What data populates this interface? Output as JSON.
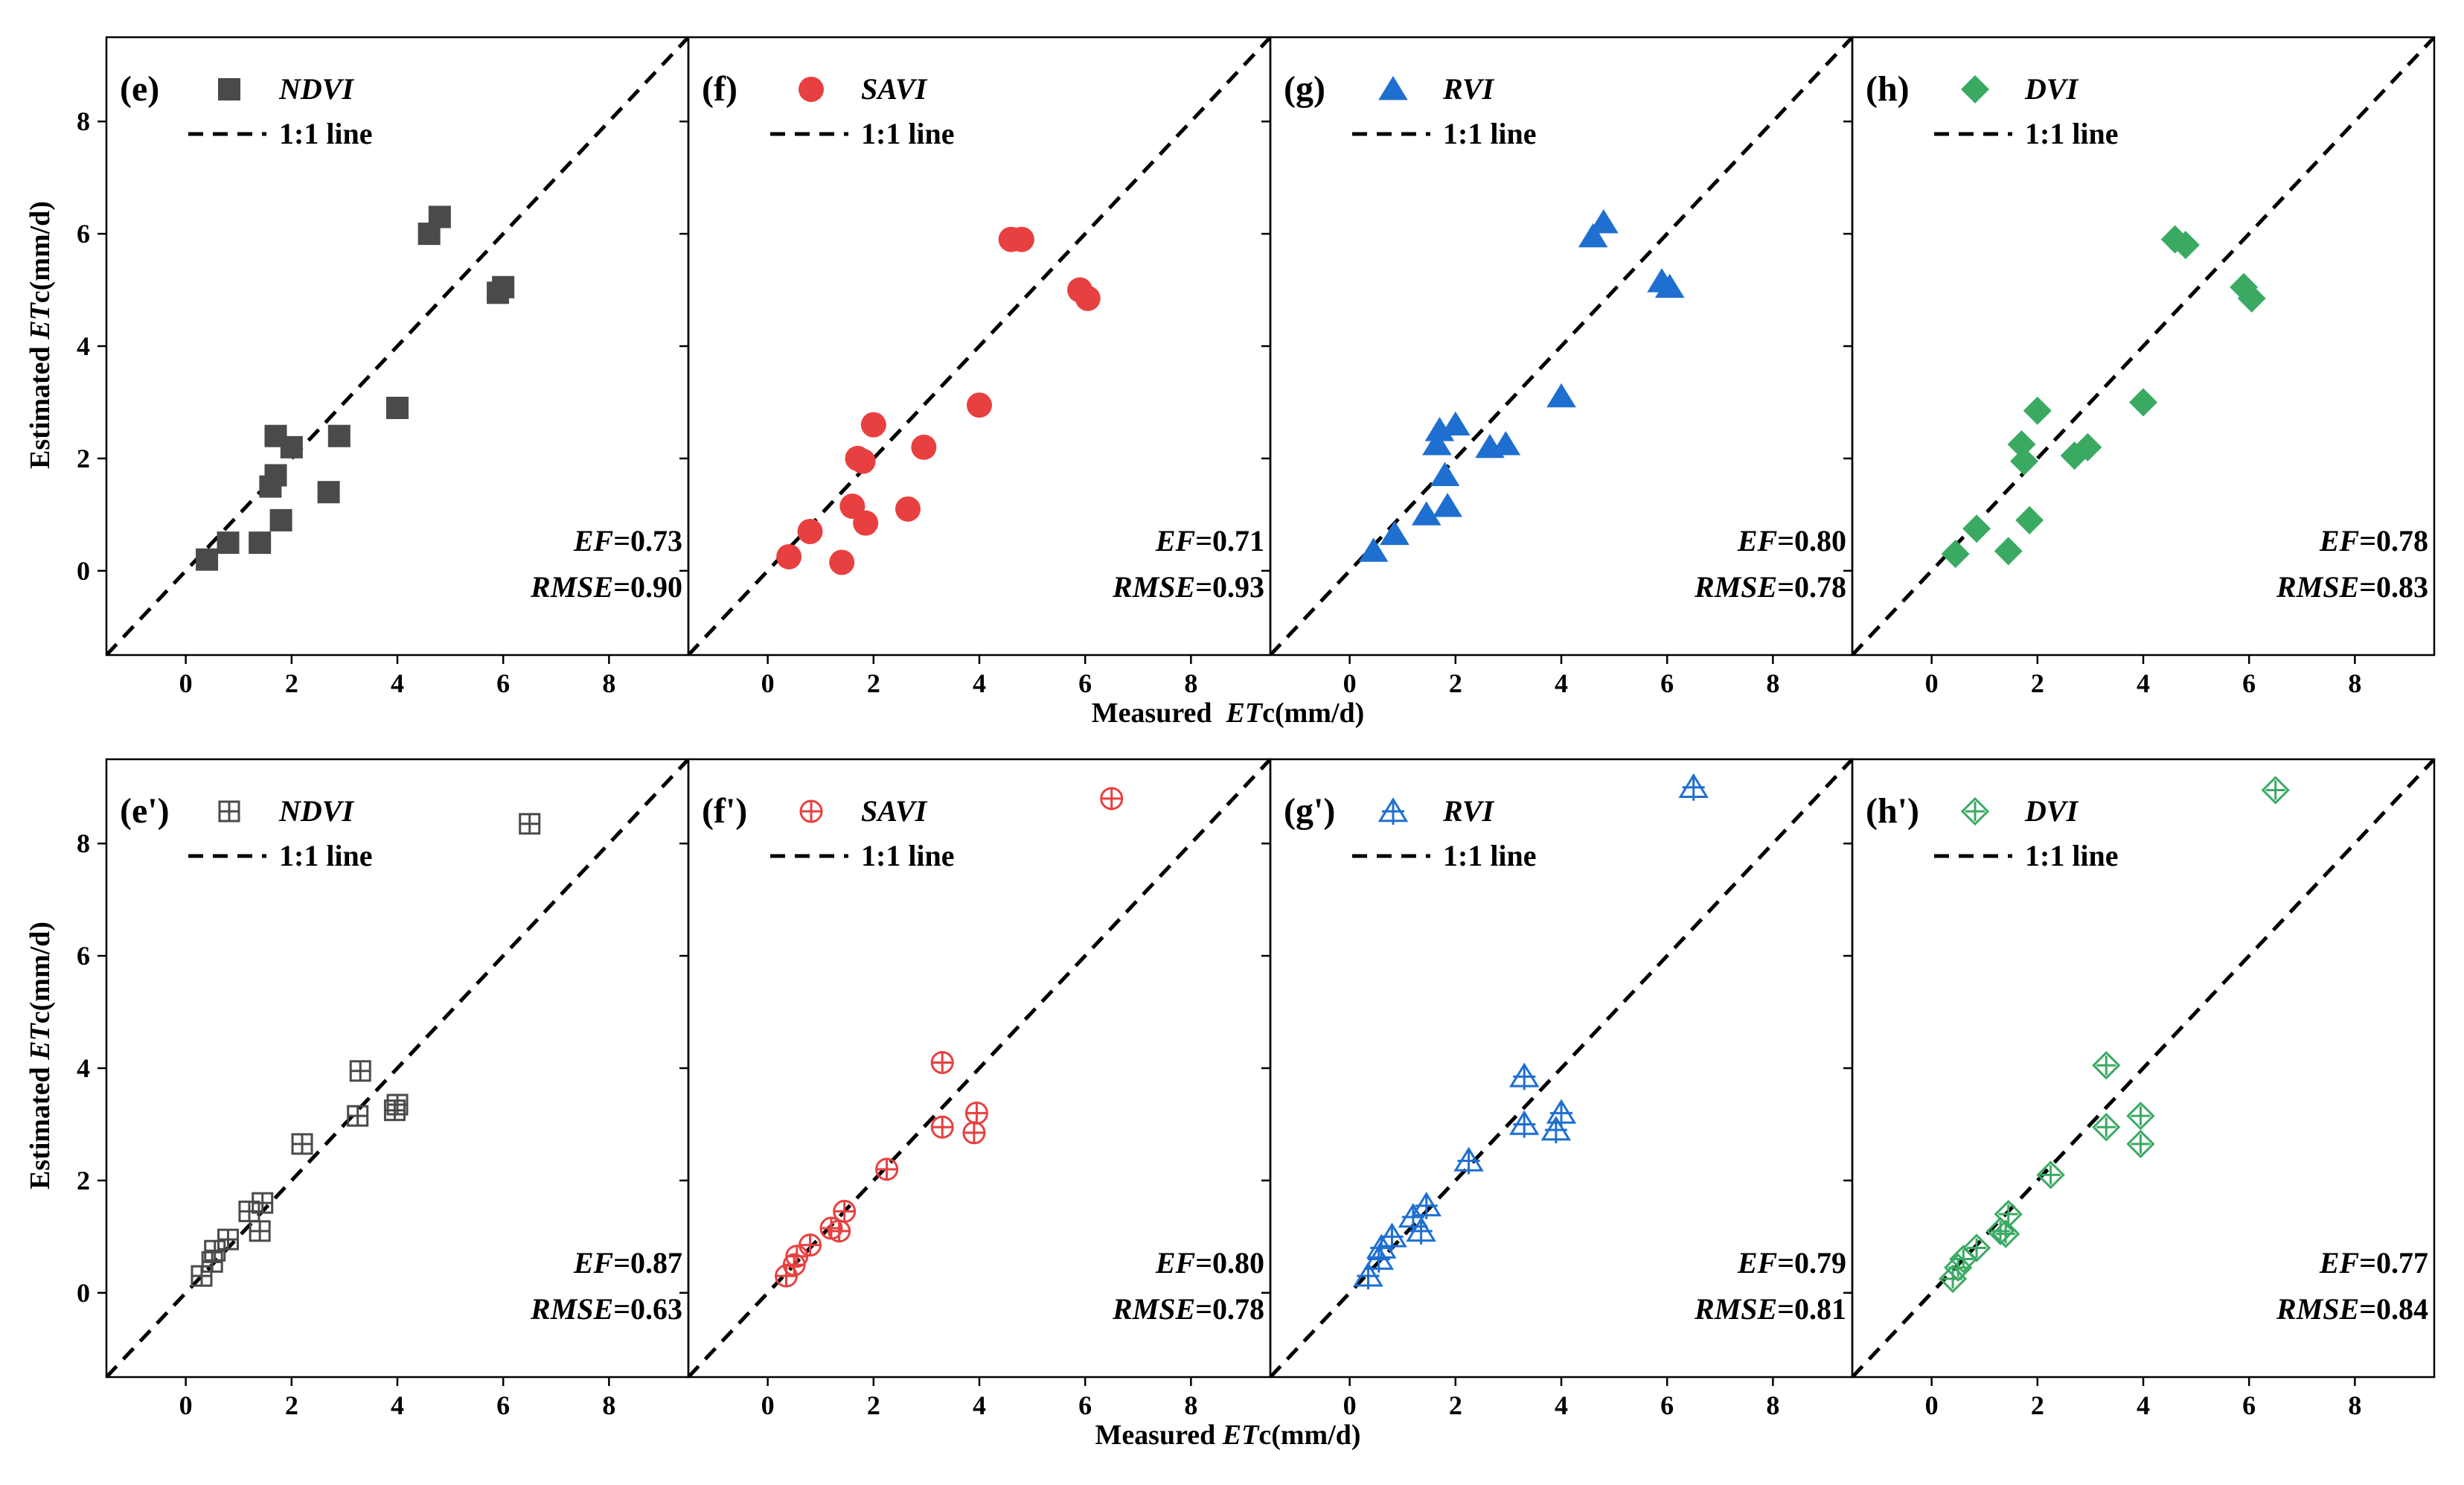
{
  "figure": {
    "rows": [
      {
        "xlabel_prefix": "Measured  ",
        "xlabel_italic": "ET",
        "xlabel_suffix": "c(mm/d)"
      },
      {
        "xlabel_prefix": "Measured ",
        "xlabel_italic": "ET",
        "xlabel_suffix": "c(mm/d)"
      }
    ],
    "ylabel_prefix": "Estimated ",
    "ylabel_italic": "ET",
    "ylabel_suffix": "c(mm/d)",
    "line_label": "1:1 line",
    "metric_labels": {
      "ef": "EF",
      "rmse": "RMSE"
    }
  },
  "chart_data": [
    {
      "type": "scatter",
      "panel_label": "(e)",
      "series_name": "NDVI",
      "marker": "square",
      "color": "#4a4a4a",
      "x": [
        0.4,
        0.8,
        1.4,
        1.6,
        1.7,
        1.7,
        1.8,
        2.0,
        2.7,
        2.9,
        4.0,
        4.6,
        4.8,
        5.9,
        6.0
      ],
      "y": [
        0.2,
        0.5,
        0.5,
        1.5,
        1.7,
        2.4,
        0.9,
        2.2,
        1.4,
        2.4,
        2.9,
        6.0,
        6.3,
        4.95,
        5.05
      ],
      "ef": "0.73",
      "rmse": "0.90",
      "xlim": [
        -1.5,
        9.5
      ],
      "ylim": [
        -1.5,
        9.5
      ],
      "xticks": [
        "0",
        "2",
        "4",
        "6",
        "8"
      ],
      "yticks": [
        "0",
        "2",
        "4",
        "6",
        "8"
      ]
    },
    {
      "type": "scatter",
      "panel_label": "(f)",
      "series_name": "SAVI",
      "marker": "circle",
      "color": "#e84040",
      "x": [
        0.4,
        0.8,
        1.4,
        1.6,
        1.7,
        1.8,
        1.85,
        2.0,
        2.65,
        2.95,
        4.0,
        4.6,
        4.8,
        5.9,
        6.05
      ],
      "y": [
        0.25,
        0.7,
        0.15,
        1.15,
        2.0,
        1.95,
        0.85,
        2.6,
        1.1,
        2.2,
        2.95,
        5.9,
        5.9,
        5.0,
        4.85
      ],
      "ef": "0.71",
      "rmse": "0.93",
      "xlim": [
        -1.5,
        9.5
      ],
      "ylim": [
        -1.5,
        9.5
      ],
      "xticks": [
        "0",
        "2",
        "4",
        "6",
        "8"
      ],
      "yticks": [
        "0",
        "2",
        "4",
        "6",
        "8"
      ]
    },
    {
      "type": "scatter",
      "panel_label": "(g)",
      "series_name": "RVI",
      "marker": "triangle",
      "color": "#1f6fd1",
      "x": [
        0.45,
        0.85,
        1.45,
        1.65,
        1.7,
        1.8,
        1.85,
        2.0,
        2.65,
        2.95,
        4.0,
        4.6,
        4.8,
        5.9,
        6.05
      ],
      "y": [
        0.35,
        0.65,
        1.0,
        2.25,
        2.5,
        1.7,
        1.15,
        2.6,
        2.2,
        2.25,
        3.1,
        5.95,
        6.2,
        5.15,
        5.05
      ],
      "ef": "0.80",
      "rmse": "0.78",
      "xlim": [
        -1.5,
        9.5
      ],
      "ylim": [
        -1.5,
        9.5
      ],
      "xticks": [
        "0",
        "2",
        "4",
        "6",
        "8"
      ],
      "yticks": [
        "0",
        "2",
        "4",
        "6",
        "8"
      ]
    },
    {
      "type": "scatter",
      "panel_label": "(h)",
      "series_name": "DVI",
      "marker": "diamond",
      "color": "#3aaa63",
      "x": [
        0.45,
        0.85,
        1.45,
        1.7,
        1.75,
        1.85,
        2.0,
        2.7,
        2.95,
        4.0,
        4.6,
        4.8,
        5.9,
        6.05
      ],
      "y": [
        0.3,
        0.75,
        0.35,
        2.25,
        1.95,
        0.9,
        2.85,
        2.05,
        2.2,
        3.0,
        5.9,
        5.8,
        5.05,
        4.85
      ],
      "ef": "0.78",
      "rmse": "0.83",
      "xlim": [
        -1.5,
        9.5
      ],
      "ylim": [
        -1.5,
        9.5
      ],
      "xticks": [
        "0",
        "2",
        "4",
        "6",
        "8"
      ],
      "yticks": [
        "0",
        "2",
        "4",
        "6",
        "8"
      ]
    },
    {
      "type": "scatter",
      "panel_label": "(e')",
      "series_name": "NDVI",
      "marker": "square-plus",
      "color": "#4a4a4a",
      "x": [
        0.3,
        0.5,
        0.55,
        0.8,
        1.2,
        1.4,
        1.45,
        2.2,
        3.25,
        3.3,
        3.95,
        4.0,
        6.5
      ],
      "y": [
        0.3,
        0.55,
        0.75,
        0.95,
        1.45,
        1.1,
        1.6,
        2.65,
        3.15,
        3.95,
        3.25,
        3.35,
        8.35
      ],
      "ef": "0.87",
      "rmse": "0.63",
      "xlim": [
        -1.5,
        9.5
      ],
      "ylim": [
        -1.5,
        9.5
      ],
      "xticks": [
        "0",
        "2",
        "4",
        "6",
        "8"
      ],
      "yticks": [
        "0",
        "2",
        "4",
        "6",
        "8"
      ]
    },
    {
      "type": "scatter",
      "panel_label": "(f')",
      "series_name": "SAVI",
      "marker": "circle-plus",
      "color": "#e84040",
      "x": [
        0.35,
        0.5,
        0.55,
        0.8,
        1.2,
        1.35,
        1.45,
        2.25,
        3.3,
        3.3,
        3.9,
        3.95,
        6.5
      ],
      "y": [
        0.3,
        0.5,
        0.65,
        0.85,
        1.15,
        1.1,
        1.45,
        2.2,
        2.95,
        4.1,
        2.85,
        3.2,
        8.8
      ],
      "ef": "0.80",
      "rmse": "0.78",
      "xlim": [
        -1.5,
        9.5
      ],
      "ylim": [
        -1.5,
        9.5
      ],
      "xticks": [
        "0",
        "2",
        "4",
        "6",
        "8"
      ],
      "yticks": [
        "0",
        "2",
        "4",
        "6",
        "8"
      ]
    },
    {
      "type": "scatter",
      "panel_label": "(g')",
      "series_name": "RVI",
      "marker": "triangle-plus",
      "color": "#1f6fd1",
      "x": [
        0.35,
        0.55,
        0.6,
        0.8,
        1.2,
        1.35,
        1.45,
        2.25,
        3.3,
        3.3,
        3.9,
        4.0,
        6.5
      ],
      "y": [
        0.3,
        0.6,
        0.8,
        1.0,
        1.35,
        1.1,
        1.55,
        2.35,
        3.0,
        3.85,
        2.9,
        3.2,
        9.0
      ],
      "ef": "0.79",
      "rmse": "0.81",
      "xlim": [
        -1.5,
        9.5
      ],
      "ylim": [
        -1.5,
        9.5
      ],
      "xticks": [
        "0",
        "2",
        "4",
        "6",
        "8"
      ],
      "yticks": [
        "0",
        "2",
        "4",
        "6",
        "8"
      ]
    },
    {
      "type": "scatter",
      "panel_label": "(h')",
      "series_name": "DVI",
      "marker": "diamond-plus",
      "color": "#3aaa63",
      "x": [
        0.4,
        0.5,
        0.6,
        0.85,
        1.3,
        1.4,
        1.45,
        2.25,
        3.3,
        3.3,
        3.95,
        3.95,
        6.5
      ],
      "y": [
        0.25,
        0.45,
        0.6,
        0.8,
        1.1,
        1.05,
        1.4,
        2.1,
        2.95,
        4.05,
        2.65,
        3.15,
        8.95
      ],
      "ef": "0.77",
      "rmse": "0.84",
      "xlim": [
        -1.5,
        9.5
      ],
      "ylim": [
        -1.5,
        9.5
      ],
      "xticks": [
        "0",
        "2",
        "4",
        "6",
        "8"
      ],
      "yticks": [
        "0",
        "2",
        "4",
        "6",
        "8"
      ]
    }
  ]
}
